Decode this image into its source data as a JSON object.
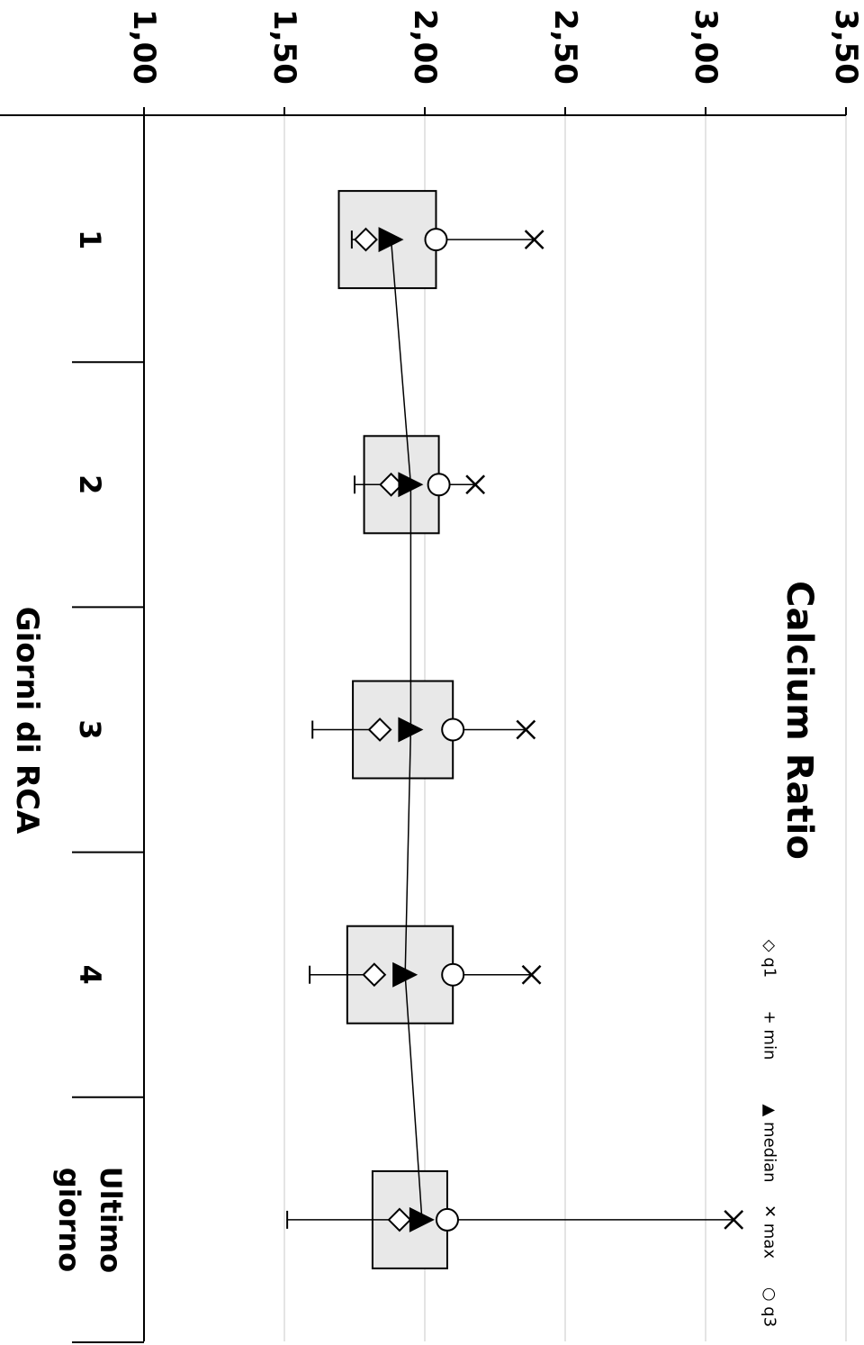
{
  "chart_data": {
    "type": "box",
    "title": "Calcium Ratio",
    "xlabel": "Giorni di RCA",
    "ylabel": "",
    "ylim": [
      1.0,
      3.5
    ],
    "yticks": [
      "1,00",
      "1,50",
      "2,00",
      "2,50",
      "3,00",
      "3,50"
    ],
    "ytick_values": [
      1.0,
      1.5,
      2.0,
      2.5,
      3.0,
      3.5
    ],
    "categories": [
      [
        "1"
      ],
      [
        "2"
      ],
      [
        "3"
      ],
      [
        "4"
      ],
      [
        "Ultimo",
        "giorno"
      ]
    ],
    "series": [
      {
        "name": "min",
        "values": [
          1.74,
          1.75,
          1.6,
          1.59,
          1.51
        ]
      },
      {
        "name": "q1",
        "values": [
          1.79,
          1.88,
          1.84,
          1.82,
          1.91
        ]
      },
      {
        "name": "median",
        "values": [
          1.88,
          1.95,
          1.95,
          1.93,
          1.99
        ]
      },
      {
        "name": "q3",
        "values": [
          2.04,
          2.05,
          2.1,
          2.1,
          2.08
        ]
      },
      {
        "name": "max",
        "values": [
          2.39,
          2.18,
          2.36,
          2.38,
          3.1
        ]
      }
    ],
    "legend": {
      "position": "right",
      "entries": [
        {
          "symbol": "◇",
          "label": "q1"
        },
        {
          "symbol": "+",
          "label": "min"
        },
        {
          "symbol": "▲",
          "label": "median"
        },
        {
          "symbol": "✕",
          "label": "max"
        },
        {
          "symbol": "○",
          "label": "q3"
        }
      ]
    },
    "grid": true,
    "orientation": "rotated-90"
  }
}
